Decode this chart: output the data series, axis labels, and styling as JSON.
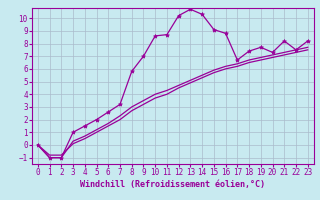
{
  "xlabel": "Windchill (Refroidissement éolien,°C)",
  "x_data": [
    0,
    1,
    2,
    3,
    4,
    5,
    6,
    7,
    8,
    9,
    10,
    11,
    12,
    13,
    14,
    15,
    16,
    17,
    18,
    19,
    20,
    21,
    22,
    23
  ],
  "line1_y": [
    0,
    -1,
    -1,
    1.0,
    1.5,
    2.0,
    2.6,
    3.2,
    5.8,
    7.0,
    8.6,
    8.7,
    10.2,
    10.7,
    10.3,
    9.1,
    8.8,
    6.7,
    7.4,
    7.7,
    7.3,
    8.2,
    7.5,
    8.2
  ],
  "line2_y": [
    0,
    -1,
    -1,
    0.3,
    0.7,
    1.2,
    1.7,
    2.3,
    3.0,
    3.5,
    4.0,
    4.3,
    4.7,
    5.1,
    5.5,
    5.9,
    6.2,
    6.4,
    6.7,
    6.9,
    7.1,
    7.3,
    7.5,
    7.7
  ],
  "line3_y": [
    0,
    -0.8,
    -0.8,
    0.1,
    0.5,
    1.0,
    1.5,
    2.0,
    2.7,
    3.2,
    3.7,
    4.0,
    4.5,
    4.9,
    5.3,
    5.7,
    6.0,
    6.2,
    6.5,
    6.7,
    6.9,
    7.1,
    7.3,
    7.5
  ],
  "line_color": "#990099",
  "marker": "*",
  "marker_size": 3,
  "bg_color": "#c8eaf0",
  "grid_color": "#aabbcc",
  "ylim": [
    -1.5,
    10.8
  ],
  "xlim": [
    -0.5,
    23.5
  ],
  "yticks": [
    -1,
    0,
    1,
    2,
    3,
    4,
    5,
    6,
    7,
    8,
    9,
    10
  ],
  "xticks": [
    0,
    1,
    2,
    3,
    4,
    5,
    6,
    7,
    8,
    9,
    10,
    11,
    12,
    13,
    14,
    15,
    16,
    17,
    18,
    19,
    20,
    21,
    22,
    23
  ],
  "tick_fontsize": 5.5,
  "label_fontsize": 6.0
}
